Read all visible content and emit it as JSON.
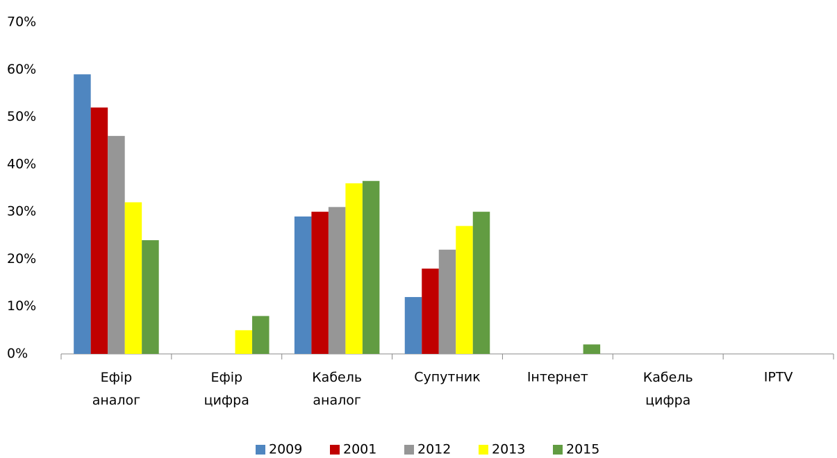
{
  "chart_data": {
    "type": "bar",
    "categories": [
      "Ефір аналог",
      "Ефір цифра",
      "Кабель аналог",
      "Супутник",
      "Інтернет",
      "Кабель цифра",
      "IPTV"
    ],
    "series": [
      {
        "name": "2009",
        "color": "#4f86c0",
        "values": [
          59,
          0,
          29,
          12,
          0,
          0,
          0
        ]
      },
      {
        "name": "2001",
        "color": "#c00000",
        "values": [
          52,
          0,
          30,
          18,
          0,
          0,
          0
        ]
      },
      {
        "name": "2012",
        "color": "#969696",
        "values": [
          46,
          0,
          31,
          22,
          0,
          0,
          0
        ]
      },
      {
        "name": "2013",
        "color": "#ffff00",
        "values": [
          32,
          5,
          36,
          27,
          0,
          0,
          0
        ]
      },
      {
        "name": "2015",
        "color": "#629c42",
        "values": [
          24,
          8,
          36.5,
          30,
          2,
          0,
          0
        ]
      }
    ],
    "ylim": [
      0,
      70
    ],
    "yticks": [
      {
        "value": 0,
        "label": "0%"
      },
      {
        "value": 10,
        "label": "10%"
      },
      {
        "value": 20,
        "label": "20%"
      },
      {
        "value": 30,
        "label": "30%"
      },
      {
        "value": 40,
        "label": "40%"
      },
      {
        "value": 50,
        "label": "50%"
      },
      {
        "value": 60,
        "label": "60%"
      },
      {
        "value": 70,
        "label": "70%"
      }
    ],
    "grid": false,
    "legend": "bottom"
  }
}
